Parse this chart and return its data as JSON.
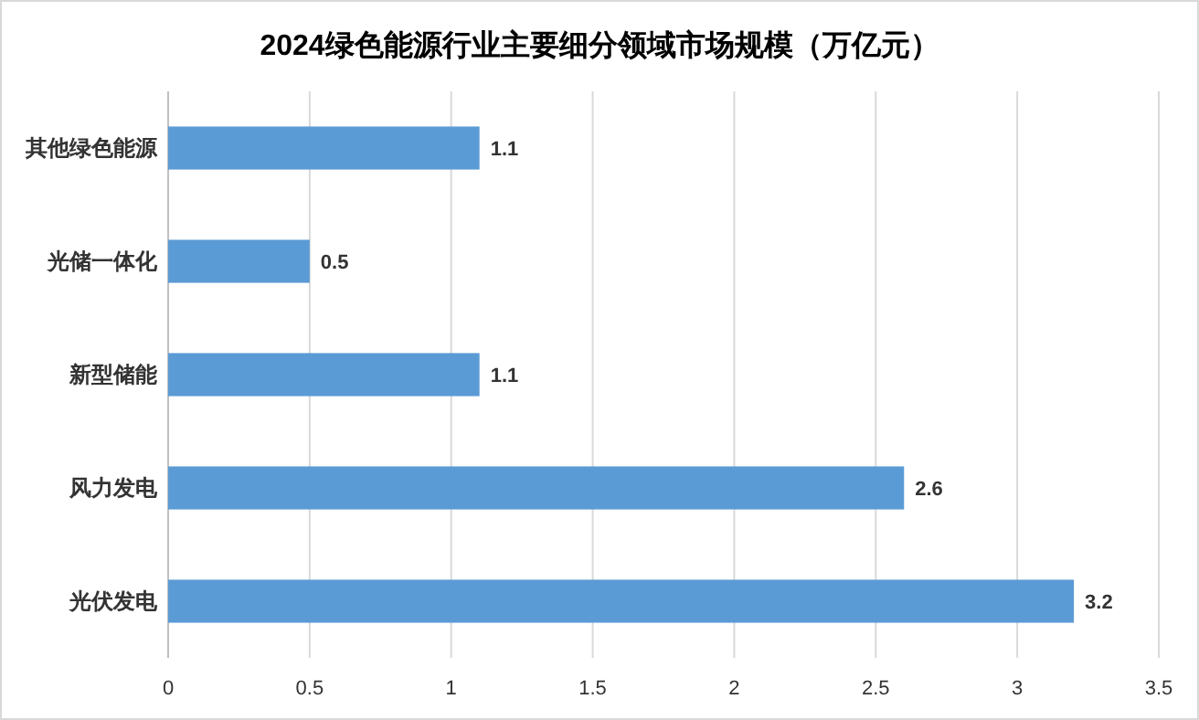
{
  "chart_data": {
    "type": "bar",
    "orientation": "horizontal",
    "title": "2024绿色能源行业主要细分领域市场规模（万亿元）",
    "categories": [
      "其他绿色能源",
      "光储一体化",
      "新型储能",
      "风力发电",
      "光伏发电"
    ],
    "values": [
      1.1,
      0.5,
      1.1,
      2.6,
      3.2
    ],
    "color": "#5b9bd5",
    "xlim": [
      0,
      3.5
    ],
    "xticks": [
      0,
      0.5,
      1,
      1.5,
      2,
      2.5,
      3,
      3.5
    ],
    "grid": "x",
    "data_labels": true
  }
}
